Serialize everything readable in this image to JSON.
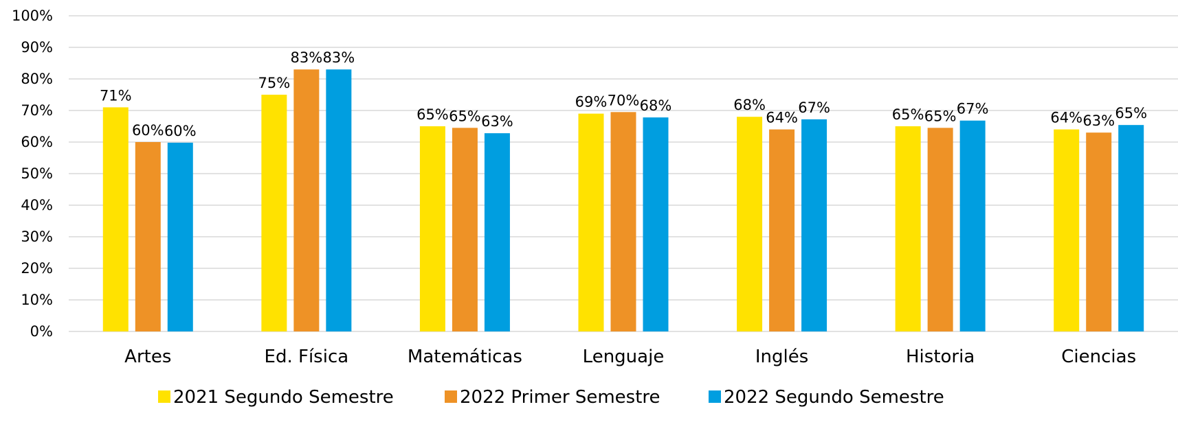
{
  "chart_data": {
    "type": "bar",
    "title": "",
    "xlabel": "",
    "ylabel": "",
    "ylim": [
      0,
      100
    ],
    "yticks": [
      "0%",
      "10%",
      "20%",
      "30%",
      "40%",
      "50%",
      "60%",
      "70%",
      "80%",
      "90%",
      "100%"
    ],
    "grid": true,
    "legend_position": "bottom",
    "categories": [
      "Artes",
      "Ed. Física",
      "Matemáticas",
      "Lenguaje",
      "Inglés",
      "Historia",
      "Ciencias"
    ],
    "series": [
      {
        "name": "2021 Segundo Semestre",
        "color": "#FFE200",
        "values": [
          71,
          75,
          65,
          69,
          68,
          65,
          64
        ],
        "labels": [
          "71%",
          "75%",
          "65%",
          "69%",
          "68%",
          "65%",
          "64%"
        ]
      },
      {
        "name": "2022 Primer Semestre",
        "color": "#EE9226",
        "values": [
          60,
          83,
          64.5,
          69.5,
          64,
          64.5,
          63
        ],
        "labels": [
          "60%",
          "83%",
          "65%",
          "70%",
          "64%",
          "65%",
          "63%"
        ]
      },
      {
        "name": "2022 Segundo Semestre",
        "color": "#009EE0",
        "values": [
          59.8,
          83,
          62.8,
          67.8,
          67.2,
          66.8,
          65.4
        ],
        "labels": [
          "60%",
          "83%",
          "63%",
          "68%",
          "67%",
          "67%",
          "65%"
        ]
      }
    ]
  }
}
